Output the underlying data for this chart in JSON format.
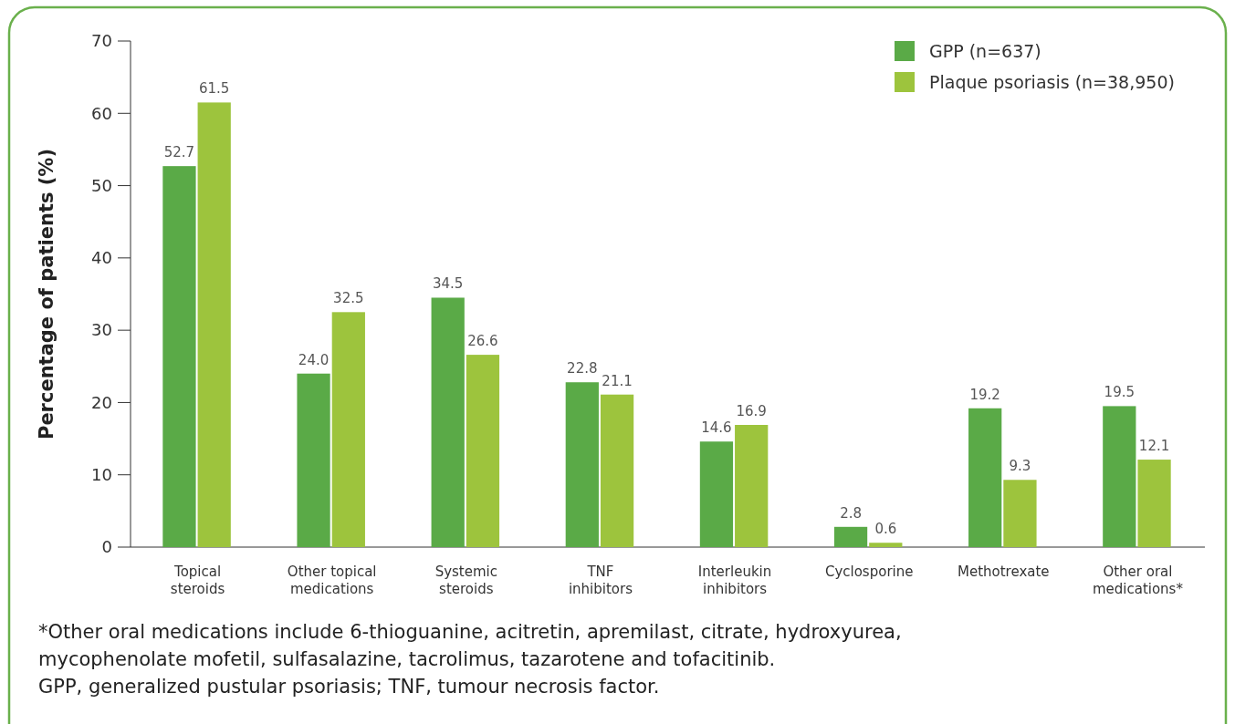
{
  "chart_data": {
    "type": "bar",
    "ylabel": "Percentage of patients (%)",
    "categories": [
      "Topical steroids",
      "Other topical medications",
      "Systemic steroids",
      "TNF inhibitors",
      "Interleukin inhibitors",
      "Cyclosporine",
      "Methotrexate",
      "Other oral medications*"
    ],
    "series": [
      {
        "name": "GPP (n=637)",
        "color": "#5aaa47",
        "values": [
          52.7,
          24.0,
          34.5,
          22.8,
          14.6,
          2.8,
          19.2,
          19.5
        ]
      },
      {
        "name": "Plaque psoriasis (n=38,950)",
        "color": "#9dc43d",
        "values": [
          61.5,
          32.5,
          26.6,
          21.1,
          16.9,
          0.6,
          9.3,
          12.1
        ]
      }
    ],
    "value_labels": [
      [
        "52.7",
        "24.0",
        "34.5",
        "22.8",
        "14.6",
        "2.8",
        "19.2",
        "19.5"
      ],
      [
        "61.5",
        "32.5",
        "26.6",
        "21.1",
        "16.9",
        "0.6",
        "9.3",
        "12.1"
      ]
    ],
    "ylim": [
      0,
      70
    ],
    "yticks": [
      0,
      10,
      20,
      30,
      40,
      50,
      60,
      70
    ],
    "grid": false,
    "legend": "top right",
    "annotations": [
      "*Other oral medications include 6-thioguanine, acitretin, apremilast, citrate, hydroxyurea, mycophenolate mofetil, sulfasalazine, tacrolimus, tazarotene and tofacitinib.",
      "GPP, generalized pustular psoriasis; TNF, tumour necrosis factor."
    ]
  }
}
